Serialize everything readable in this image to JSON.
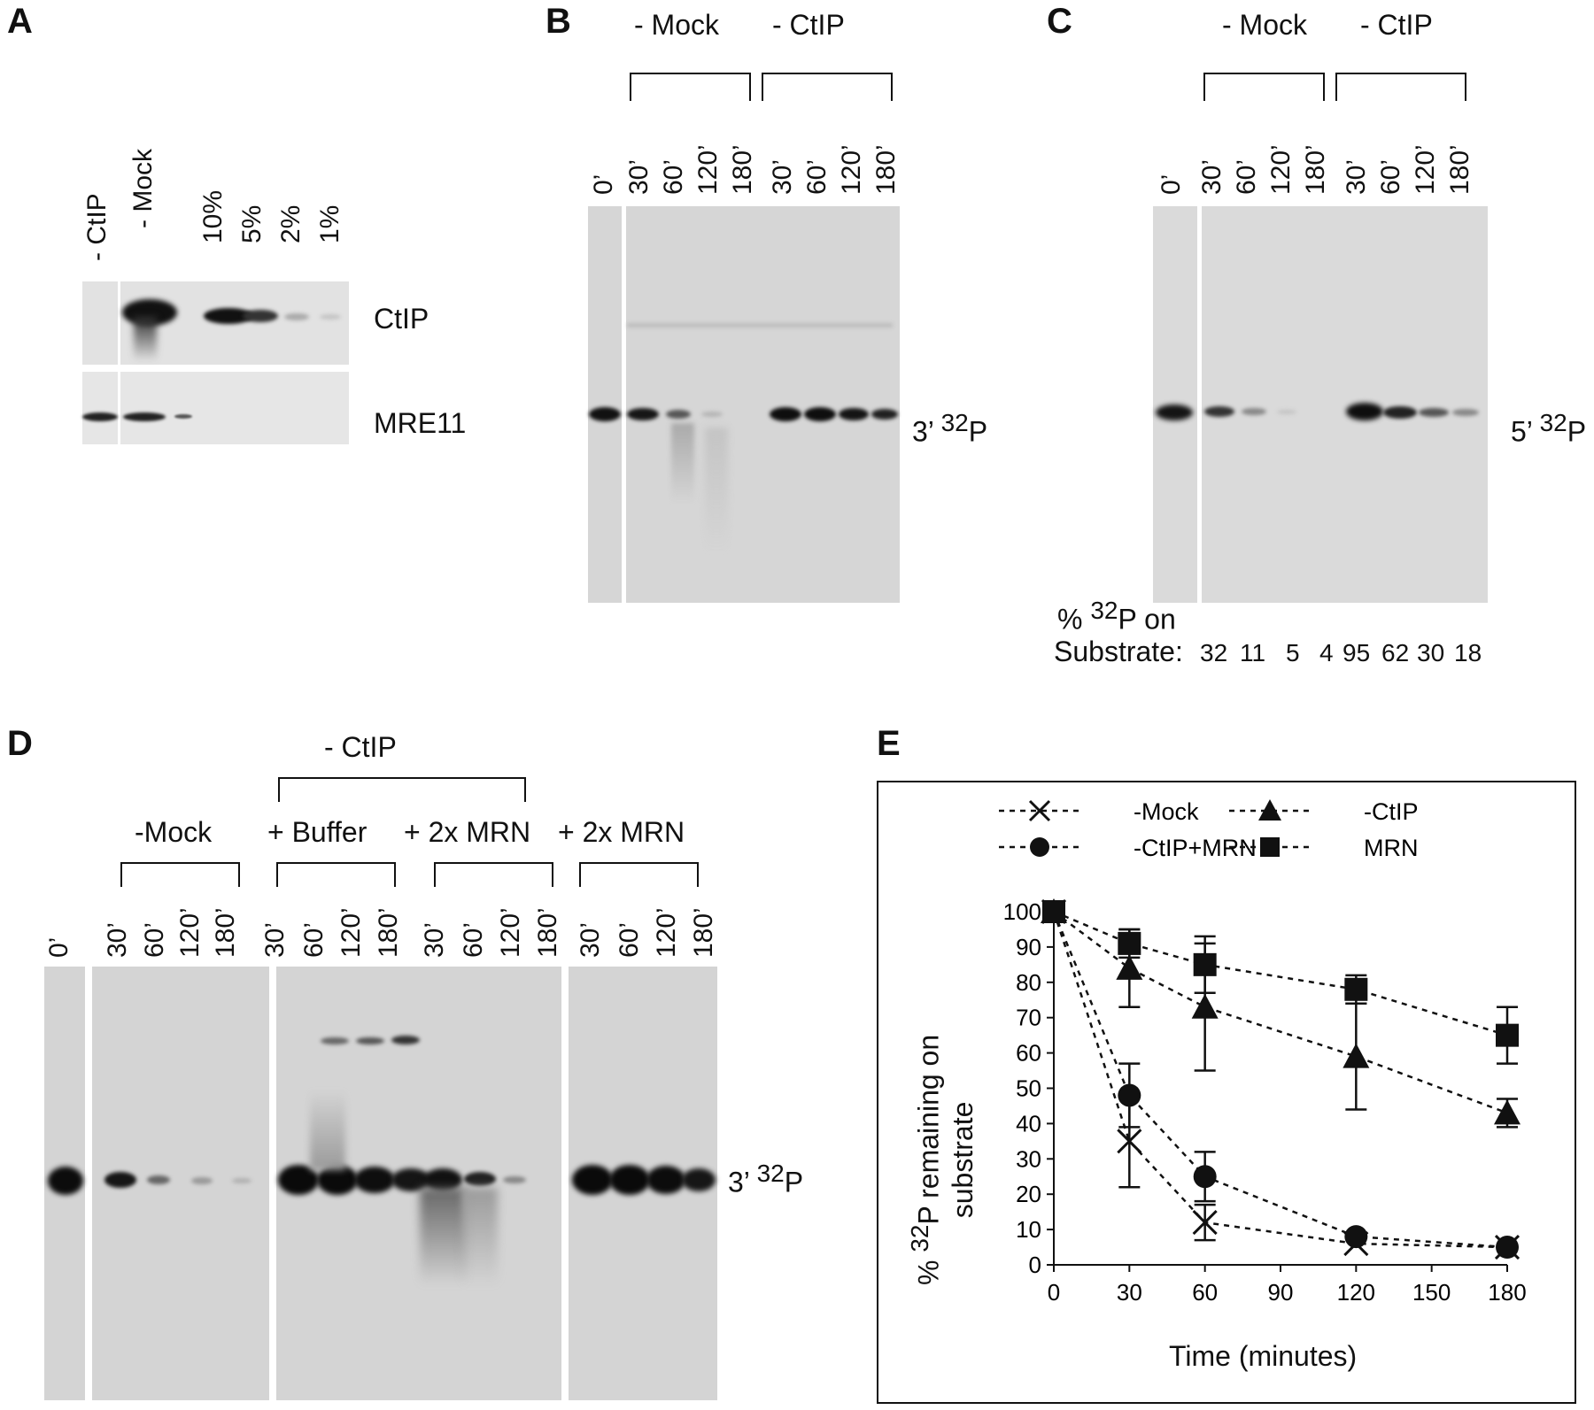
{
  "panels": {
    "a": "A",
    "b": "B",
    "c": "C",
    "d": "D",
    "e": "E"
  },
  "panelA": {
    "lanes": [
      "- CtIP",
      "- Mock",
      "10%",
      "5%",
      "2%",
      "1%"
    ],
    "blots": [
      "CtIP",
      "MRE11"
    ]
  },
  "panelB": {
    "groups": [
      "- Mock",
      "- CtIP"
    ],
    "lanes": [
      "0’",
      "30’",
      "60’",
      "120’",
      "180’",
      "30’",
      "60’",
      "120’",
      "180’"
    ],
    "marker_prefix": "3’ ",
    "marker_sup": "32",
    "marker_suffix": "P"
  },
  "panelC": {
    "groups": [
      "- Mock",
      "- CtIP"
    ],
    "lanes": [
      "0’",
      "30’",
      "60’",
      "120’",
      "180’",
      "30’",
      "60’",
      "120’",
      "180’"
    ],
    "marker_prefix": "5’ ",
    "marker_sup": "32",
    "marker_suffix": "P",
    "quant_line1_prefix": "% ",
    "quant_line1_sup": "32",
    "quant_line1_suffix": "P on",
    "quant_line2": "Substrate:",
    "values": [
      "32",
      "11",
      "5",
      "4",
      "95",
      "62",
      "30",
      "18"
    ]
  },
  "panelD": {
    "top_group": "- CtIP",
    "groups": [
      "-Mock",
      "+ Buffer",
      "+ 2x MRN",
      "+ 2x MRN"
    ],
    "lanes": [
      "0’",
      "30’",
      "60’",
      "120’",
      "180’",
      "30’",
      "60’",
      "120’",
      "180’",
      "30’",
      "60’",
      "120’",
      "180’",
      "30’",
      "60’",
      "120’",
      "180’"
    ],
    "marker_prefix": "3’ ",
    "marker_sup": "32",
    "marker_suffix": "P"
  },
  "chart_data": {
    "type": "line",
    "xlabel": "Time (minutes)",
    "ylabel_line1_prefix": "% ",
    "ylabel_line1_sup": "32",
    "ylabel_line1_suffix": "P remaining on",
    "ylabel_line2": "substrate",
    "xlim": [
      0,
      180
    ],
    "ylim": [
      0,
      100
    ],
    "x_ticks": [
      0,
      30,
      60,
      90,
      120,
      150,
      180
    ],
    "y_ticks": [
      0,
      10,
      20,
      30,
      40,
      50,
      60,
      70,
      80,
      90,
      100
    ],
    "legend_placement": "top",
    "series": [
      {
        "name": "-Mock",
        "marker": "x",
        "x": [
          0,
          30,
          60,
          120,
          180
        ],
        "y": [
          100,
          35,
          12,
          6,
          5
        ],
        "err": [
          0,
          13,
          5,
          0,
          0
        ]
      },
      {
        "name": "-CtIP",
        "marker": "triangle",
        "x": [
          0,
          30,
          60,
          120,
          180
        ],
        "y": [
          100,
          84,
          73,
          59,
          43
        ],
        "err": [
          0,
          11,
          18,
          15,
          4
        ]
      },
      {
        "name": "-CtIP+MRN",
        "marker": "circle",
        "x": [
          0,
          30,
          60,
          120,
          180
        ],
        "y": [
          100,
          48,
          25,
          8,
          5
        ],
        "err": [
          0,
          9,
          7,
          0,
          0
        ]
      },
      {
        "name": "MRN",
        "marker": "square",
        "x": [
          0,
          30,
          60,
          120,
          180
        ],
        "y": [
          100,
          91,
          85,
          78,
          65
        ],
        "err": [
          0,
          4,
          8,
          4,
          8
        ]
      }
    ]
  }
}
